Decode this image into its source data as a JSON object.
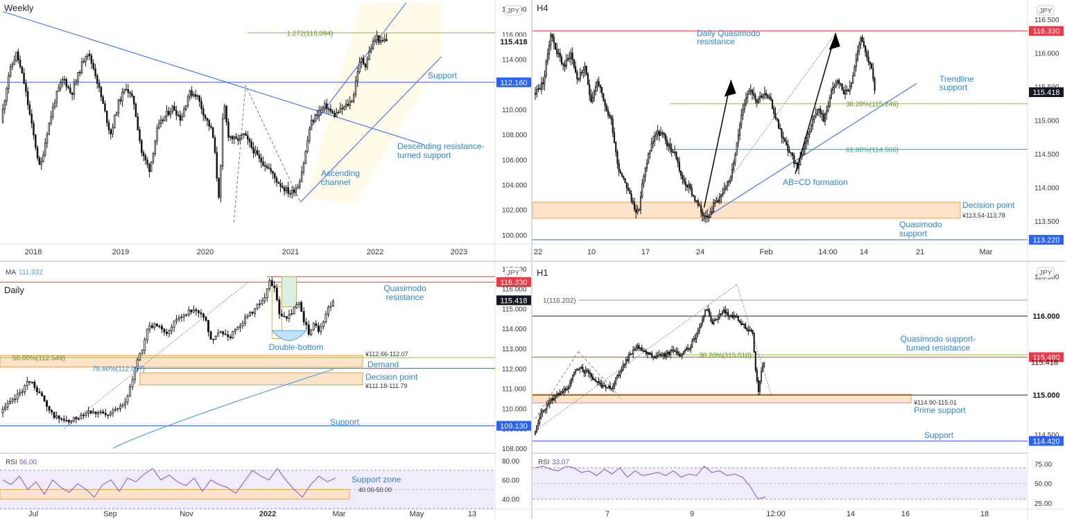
{
  "colors": {
    "candle": "#111111",
    "blue_line": "#2962ff",
    "blue_text": "#2a86d6",
    "red_line": "#e53935",
    "green_line": "#8bc34a",
    "teal_line": "#26a69a",
    "orange_zone_fill": "#fde3c8",
    "orange_zone_border": "#f0a040",
    "channel_fill": "#fffbe8",
    "ma_line": "#4fa3e0",
    "rsi_line": "#7e57c2",
    "rsi_fill": "#f1ecfb",
    "axis_text": "#333333",
    "price_tag_dark": "#131722",
    "price_tag_blue": "#2962ff",
    "price_tag_red": "#f23645"
  },
  "chart_data": [
    {
      "panel": "weekly",
      "type": "candlestick",
      "title": "Weekly",
      "currency_badge": "JPY",
      "x_ticks": [
        "2018",
        "2019",
        "2020",
        "2021",
        "2022",
        "2023"
      ],
      "y_ticks": [
        "118.000",
        "116.000",
        "114.000",
        "112.000",
        "110.000",
        "108.000",
        "106.000",
        "104.000",
        "102.000",
        "100.000"
      ],
      "ylim": [
        99.5,
        118.5
      ],
      "price_tags": [
        {
          "label": "115.418",
          "value": 115.418,
          "style": "plain"
        },
        {
          "label": "112.160",
          "value": 112.16,
          "style": "blue"
        }
      ],
      "levels": [
        {
          "label": "1.272(116.094)",
          "value": 116.094,
          "color": "green"
        },
        {
          "label": "Support",
          "value": 112.16,
          "color": "blue"
        }
      ],
      "annotations": [
        {
          "text": "Descending resistance-",
          "text2": "turned support"
        },
        {
          "text": "Ascending",
          "text2": "channel"
        }
      ],
      "path": [
        [
          0,
          109.0
        ],
        [
          4,
          112.8
        ],
        [
          8,
          114.5
        ],
        [
          12,
          112.0
        ],
        [
          16,
          108.5
        ],
        [
          20,
          105.2
        ],
        [
          24,
          108.5
        ],
        [
          28,
          111.0
        ],
        [
          32,
          112.5
        ],
        [
          36,
          111.2
        ],
        [
          40,
          113.0
        ],
        [
          44,
          114.7
        ],
        [
          48,
          113.0
        ],
        [
          52,
          110.5
        ],
        [
          56,
          108.0
        ],
        [
          60,
          110.5
        ],
        [
          64,
          111.8
        ],
        [
          68,
          110.5
        ],
        [
          72,
          106.5
        ],
        [
          76,
          105.2
        ],
        [
          80,
          108.5
        ],
        [
          84,
          109.5
        ],
        [
          88,
          110.2
        ],
        [
          92,
          109.2
        ],
        [
          96,
          111.3
        ],
        [
          100,
          111.2
        ],
        [
          104,
          109.5
        ],
        [
          108,
          108.2
        ],
        [
          110,
          105.5
        ],
        [
          111,
          102.8
        ],
        [
          112,
          104.0
        ],
        [
          113,
          108.5
        ],
        [
          114,
          110.5
        ],
        [
          116,
          108.0
        ],
        [
          120,
          107.5
        ],
        [
          124,
          108.0
        ],
        [
          128,
          107.0
        ],
        [
          132,
          106.0
        ],
        [
          136,
          105.5
        ],
        [
          140,
          104.5
        ],
        [
          144,
          103.8
        ],
        [
          148,
          103.3
        ],
        [
          152,
          104.0
        ],
        [
          155,
          106.0
        ],
        [
          158,
          108.8
        ],
        [
          162,
          109.8
        ],
        [
          166,
          110.3
        ],
        [
          170,
          109.5
        ],
        [
          174,
          110.0
        ],
        [
          178,
          110.5
        ],
        [
          180,
          111.0
        ],
        [
          182,
          113.0
        ],
        [
          184,
          114.0
        ],
        [
          186,
          113.5
        ],
        [
          188,
          114.5
        ],
        [
          190,
          115.3
        ],
        [
          192,
          115.8
        ],
        [
          194,
          115.3
        ],
        [
          196,
          115.5
        ]
      ],
      "xlim": [
        0,
        250
      ]
    },
    {
      "panel": "h4",
      "type": "candlestick",
      "title": "H4",
      "currency_badge": "JPY",
      "x_ticks": [
        "22",
        "10",
        "17",
        "24",
        "Feb",
        "14:00",
        "14",
        "21",
        "Mar"
      ],
      "y_ticks": [
        "116.500",
        "116.000",
        "115.500",
        "115.000",
        "114.500",
        "114.000",
        "113.500"
      ],
      "ylim": [
        113.2,
        116.75
      ],
      "price_tags": [
        {
          "label": "116.330",
          "value": 116.33,
          "style": "red"
        },
        {
          "label": "115.418",
          "value": 115.418,
          "style": "dark"
        },
        {
          "label": "113.220",
          "value": 113.22,
          "style": "blue"
        }
      ],
      "levels": [
        {
          "label": "38.20%(115.246)",
          "value": 115.246,
          "color": "green"
        },
        {
          "label": "61.80%(114.566)",
          "value": 114.566,
          "color": "teal"
        }
      ],
      "zones": [
        {
          "label": "Decision point",
          "range_label": "¥113.54-113.78",
          "low": 113.54,
          "high": 113.78
        }
      ],
      "annotations": [
        {
          "text": "Daily Quasimodo",
          "text2": "resistance"
        },
        {
          "text": "Trendline",
          "text2": "support"
        },
        {
          "text": "AB=CD formation",
          "text2": ""
        },
        {
          "text": "Quasimodo",
          "text2": "support"
        }
      ],
      "path": [
        [
          0,
          115.4
        ],
        [
          2,
          115.5
        ],
        [
          3,
          115.6
        ],
        [
          5,
          116.3
        ],
        [
          7,
          116.0
        ],
        [
          9,
          115.8
        ],
        [
          11,
          116.0
        ],
        [
          13,
          115.6
        ],
        [
          15,
          115.8
        ],
        [
          17,
          115.3
        ],
        [
          19,
          115.6
        ],
        [
          21,
          115.2
        ],
        [
          23,
          115.0
        ],
        [
          25,
          114.3
        ],
        [
          27,
          114.1
        ],
        [
          29,
          113.8
        ],
        [
          31,
          113.6
        ],
        [
          32,
          114.0
        ],
        [
          34,
          114.5
        ],
        [
          36,
          114.8
        ],
        [
          38,
          114.8
        ],
        [
          40,
          114.6
        ],
        [
          42,
          114.5
        ],
        [
          44,
          114.1
        ],
        [
          46,
          114.0
        ],
        [
          48,
          113.8
        ],
        [
          50,
          113.6
        ],
        [
          52,
          113.6
        ],
        [
          54,
          113.8
        ],
        [
          56,
          113.9
        ],
        [
          58,
          114.1
        ],
        [
          60,
          114.6
        ],
        [
          62,
          115.2
        ],
        [
          64,
          115.5
        ],
        [
          66,
          115.3
        ],
        [
          68,
          115.4
        ],
        [
          70,
          115.3
        ],
        [
          72,
          115.0
        ],
        [
          74,
          114.7
        ],
        [
          76,
          114.5
        ],
        [
          78,
          114.3
        ],
        [
          80,
          114.6
        ],
        [
          82,
          114.9
        ],
        [
          84,
          115.2
        ],
        [
          86,
          115.0
        ],
        [
          88,
          115.4
        ],
        [
          90,
          115.6
        ],
        [
          92,
          115.4
        ],
        [
          94,
          115.5
        ],
        [
          96,
          116.0
        ],
        [
          97,
          116.3
        ],
        [
          98,
          116.0
        ],
        [
          99,
          115.9
        ],
        [
          100,
          115.8
        ],
        [
          101,
          115.4
        ]
      ],
      "xlim": [
        0,
        145
      ]
    },
    {
      "panel": "daily",
      "type": "candlestick",
      "title": "Daily",
      "ma_label": "MA",
      "ma_value": "111.932",
      "currency_badge": "JPY",
      "x_ticks": [
        "Jul",
        "Sep",
        "Nov",
        "2022",
        "Mar",
        "May",
        "13"
      ],
      "y_ticks": [
        "117.000",
        "116.000",
        "115.000",
        "114.000",
        "113.000",
        "112.000",
        "111.000",
        "110.000",
        "109.000",
        "108.000"
      ],
      "ylim": [
        107.9,
        117.2
      ],
      "price_tags": [
        {
          "label": "116.330",
          "value": 116.33,
          "style": "red"
        },
        {
          "label": "115.418",
          "value": 115.418,
          "style": "dark"
        },
        {
          "label": "109.130",
          "value": 109.13,
          "style": "blue"
        }
      ],
      "levels": [
        {
          "label": "50.00%(112.549)",
          "value": 112.549,
          "color": "green"
        },
        {
          "label": "78.60%(112.007)",
          "value": 112.007,
          "color": "blue"
        }
      ],
      "zones": [
        {
          "label": "Demand",
          "range_label": "¥112.66-112.07",
          "low": 112.07,
          "high": 112.66
        },
        {
          "label": "Decision point",
          "range_label": "¥111.18-111.79",
          "low": 111.18,
          "high": 111.79
        }
      ],
      "annotations": [
        {
          "text": "Quasimodo",
          "text2": "resistance"
        },
        {
          "text": "Double-bottom",
          "text2": ""
        },
        {
          "text": "Support",
          "text2": ""
        }
      ],
      "path": [
        [
          0,
          109.8
        ],
        [
          6,
          110.5
        ],
        [
          12,
          111.4
        ],
        [
          16,
          110.8
        ],
        [
          20,
          109.8
        ],
        [
          24,
          109.5
        ],
        [
          28,
          109.3
        ],
        [
          32,
          109.6
        ],
        [
          36,
          109.9
        ],
        [
          40,
          109.8
        ],
        [
          44,
          109.6
        ],
        [
          48,
          110.1
        ],
        [
          52,
          110.5
        ],
        [
          54,
          111.5
        ],
        [
          56,
          112.5
        ],
        [
          58,
          113.0
        ],
        [
          60,
          114.0
        ],
        [
          64,
          114.2
        ],
        [
          68,
          113.8
        ],
        [
          72,
          114.5
        ],
        [
          76,
          114.8
        ],
        [
          80,
          115.0
        ],
        [
          84,
          114.3
        ],
        [
          86,
          113.4
        ],
        [
          90,
          113.8
        ],
        [
          94,
          113.6
        ],
        [
          96,
          114.0
        ],
        [
          100,
          114.5
        ],
        [
          104,
          115.0
        ],
        [
          108,
          115.6
        ],
        [
          110,
          116.3
        ],
        [
          112,
          116.0
        ],
        [
          114,
          114.7
        ],
        [
          118,
          114.6
        ],
        [
          122,
          115.3
        ],
        [
          124,
          114.4
        ],
        [
          126,
          113.8
        ],
        [
          128,
          114.2
        ],
        [
          130,
          113.9
        ],
        [
          132,
          114.4
        ],
        [
          134,
          115.0
        ],
        [
          136,
          115.4
        ]
      ],
      "xlim": [
        0,
        200
      ],
      "rsi": {
        "label": "RSI",
        "value": "56.00",
        "y_ticks": [
          "80.00",
          "60.00",
          "40.00"
        ],
        "ylim": [
          30,
          85
        ],
        "zone_label": "Support zone",
        "zone_range": "40.00-50.00",
        "values": [
          60,
          55,
          64,
          50,
          58,
          45,
          60,
          52,
          47,
          56,
          50,
          42,
          55,
          60,
          48,
          62,
          58,
          66,
          72,
          60,
          65,
          58,
          54,
          62,
          48,
          60,
          55,
          52,
          46,
          58,
          70,
          64,
          60,
          72,
          60,
          50,
          42,
          55,
          64,
          58,
          62
        ]
      }
    },
    {
      "panel": "h1",
      "type": "candlestick",
      "title": "H1",
      "currency_badge": "JPY",
      "x_ticks": [
        "7",
        "9",
        "12:00",
        "14",
        "16",
        "18"
      ],
      "y_ticks": [
        "116.500",
        "116.000",
        "115.500",
        "115.000",
        "114.500"
      ],
      "ylim": [
        114.3,
        116.65
      ],
      "price_tags": [
        {
          "label": "116.000",
          "value": 116.0,
          "style": "plain"
        },
        {
          "label": "115.480",
          "value": 115.48,
          "style": "red"
        },
        {
          "label": "115.000",
          "value": 115.0,
          "style": "plain"
        },
        {
          "label": "114.420",
          "value": 114.42,
          "style": "blue"
        }
      ],
      "plain_labels": [
        {
          "label": "115.418",
          "value": 115.418
        }
      ],
      "levels": [
        {
          "label": "1(116.202)",
          "value": 116.202,
          "color": "gray"
        },
        {
          "label": "38.20%(115.510)",
          "value": 115.51,
          "color": "green"
        }
      ],
      "zones": [
        {
          "label": "Prime support",
          "range_label": "¥114.90-115.01",
          "low": 114.9,
          "high": 115.01
        }
      ],
      "annotations": [
        {
          "text": "Quasimodo support-",
          "text2": "turned resistance"
        },
        {
          "text": "Support",
          "text2": ""
        }
      ],
      "path": [
        [
          0,
          114.5
        ],
        [
          3,
          114.8
        ],
        [
          6,
          114.95
        ],
        [
          9,
          115.0
        ],
        [
          12,
          115.1
        ],
        [
          15,
          115.35
        ],
        [
          18,
          115.3
        ],
        [
          21,
          115.2
        ],
        [
          24,
          115.1
        ],
        [
          27,
          115.1
        ],
        [
          30,
          115.3
        ],
        [
          33,
          115.5
        ],
        [
          36,
          115.6
        ],
        [
          39,
          115.55
        ],
        [
          42,
          115.5
        ],
        [
          45,
          115.5
        ],
        [
          48,
          115.55
        ],
        [
          51,
          115.5
        ],
        [
          54,
          115.6
        ],
        [
          57,
          115.8
        ],
        [
          60,
          116.1
        ],
        [
          62,
          115.9
        ],
        [
          64,
          116.0
        ],
        [
          66,
          116.05
        ],
        [
          68,
          116.0
        ],
        [
          70,
          116.0
        ],
        [
          72,
          115.9
        ],
        [
          74,
          115.85
        ],
        [
          76,
          115.8
        ],
        [
          77,
          115.3
        ],
        [
          78,
          115.05
        ],
        [
          79,
          115.3
        ],
        [
          80,
          115.42
        ]
      ],
      "xlim": [
        0,
        170
      ],
      "rsi": {
        "label": "RSI",
        "value": "33.07",
        "y_ticks": [
          "75.00",
          "50.00",
          "25.00"
        ],
        "ylim": [
          18,
          85
        ],
        "values": [
          70,
          72,
          68,
          66,
          72,
          70,
          64,
          66,
          60,
          68,
          62,
          70,
          58,
          66,
          60,
          62,
          64,
          60,
          66,
          58,
          62,
          60,
          72,
          64,
          66,
          60,
          62,
          58,
          46,
          30,
          33
        ]
      }
    }
  ]
}
